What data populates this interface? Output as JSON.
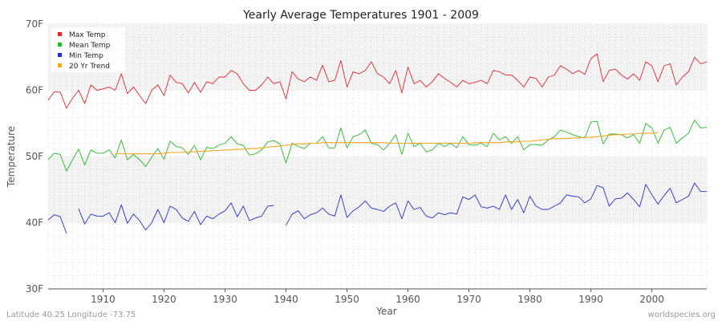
{
  "colors": {
    "max": "#e8262b",
    "mean": "#22bb22",
    "min": "#2430d0",
    "trend": "#f5a623"
  },
  "footer": {
    "left": "Latitude 40.25 Longitude -73.75",
    "right": "worldspecies.org"
  },
  "chart_data": {
    "type": "line",
    "title": "Yearly Average Temperatures 1901 - 2009",
    "xlabel": "Year",
    "ylabel": "Temperature",
    "xlim": [
      1901,
      2009
    ],
    "ylim": [
      30,
      70
    ],
    "yticks": [
      30,
      40,
      50,
      60,
      70
    ],
    "ytick_labels": [
      "30F",
      "40F",
      "50F",
      "60F",
      "70F"
    ],
    "xticks": [
      1910,
      1920,
      1930,
      1940,
      1950,
      1960,
      1970,
      1980,
      1990,
      2000
    ],
    "xtick_labels": [
      "1910",
      "1920",
      "1930",
      "1940",
      "1950",
      "1960",
      "1970",
      "1980",
      "1990",
      "2000"
    ],
    "grid": true,
    "legend_position": "top-left",
    "series": [
      {
        "name": "Max Temp",
        "x_start": 1901,
        "values": [
          58.5,
          59.8,
          59.7,
          57.3,
          58.8,
          60.0,
          58.0,
          60.8,
          60.0,
          60.2,
          60.5,
          60.0,
          62.5,
          59.5,
          60.5,
          59.2,
          58.0,
          60.0,
          60.8,
          59.2,
          62.3,
          61.2,
          61.0,
          59.6,
          61.2,
          59.7,
          61.3,
          61.0,
          62.0,
          62.0,
          63.0,
          62.5,
          61.0,
          60.0,
          60.0,
          60.8,
          62.0,
          61.0,
          61.3,
          58.7,
          62.8,
          61.7,
          61.3,
          62.0,
          61.5,
          63.8,
          61.3,
          61.5,
          64.5,
          60.5,
          62.8,
          62.5,
          63.0,
          64.3,
          62.5,
          62.0,
          61.0,
          63.0,
          59.6,
          63.5,
          61.0,
          61.5,
          60.5,
          61.3,
          62.5,
          61.8,
          61.2,
          60.5,
          61.5,
          61.0,
          61.2,
          61.5,
          61.0,
          63.0,
          62.8,
          62.3,
          62.3,
          61.5,
          60.5,
          62.0,
          61.8,
          60.5,
          62.0,
          62.3,
          63.7,
          63.2,
          62.5,
          63.0,
          62.4,
          64.8,
          65.5,
          61.3,
          63.0,
          63.2,
          62.3,
          61.7,
          62.5,
          61.5,
          64.3,
          63.7,
          61.3,
          63.7,
          64.0,
          60.8,
          62.0,
          62.8,
          65.0,
          64.0,
          64.3,
          61.8
        ]
      },
      {
        "name": "Mean Temp",
        "x_start": 1901,
        "values": [
          49.5,
          50.5,
          50.3,
          47.8,
          49.5,
          51.1,
          48.7,
          51.0,
          50.5,
          50.5,
          51.0,
          49.8,
          52.5,
          49.5,
          50.3,
          49.5,
          48.5,
          49.9,
          51.2,
          49.6,
          52.3,
          51.5,
          51.3,
          50.3,
          51.7,
          49.5,
          51.4,
          51.2,
          51.7,
          52.0,
          53.0,
          51.9,
          51.7,
          50.2,
          50.4,
          51.0,
          52.2,
          52.4,
          51.9,
          49.0,
          52.0,
          51.5,
          51.2,
          52.0,
          52.0,
          53.0,
          51.3,
          51.3,
          54.3,
          51.3,
          53.0,
          53.3,
          54.0,
          52.0,
          51.8,
          51.0,
          52.0,
          53.3,
          50.3,
          53.5,
          51.5,
          52.0,
          50.7,
          51.0,
          52.0,
          51.5,
          52.0,
          51.3,
          53.0,
          51.8,
          51.7,
          52.0,
          51.5,
          53.5,
          52.5,
          53.0,
          52.0,
          53.0,
          51.0,
          51.8,
          51.8,
          51.7,
          52.5,
          53.0,
          54.0,
          53.7,
          53.3,
          53.0,
          52.8,
          55.2,
          55.3,
          51.9,
          53.4,
          53.4,
          53.3,
          52.8,
          53.3,
          52.0,
          55.0,
          54.3,
          52.0,
          54.0,
          54.4,
          52.0,
          52.8,
          53.5,
          55.5,
          54.3,
          54.4,
          53.2
        ]
      },
      {
        "name": "Min Temp",
        "x_start": 1901,
        "values": [
          40.4,
          41.2,
          40.9,
          38.4,
          null,
          42.1,
          39.8,
          41.3,
          41.0,
          41.0,
          41.5,
          40.0,
          42.7,
          39.9,
          41.3,
          40.3,
          38.9,
          40.0,
          42.0,
          40.0,
          42.5,
          42.0,
          40.7,
          40.2,
          41.7,
          39.7,
          41.0,
          40.6,
          41.3,
          41.8,
          43.0,
          40.9,
          42.5,
          40.3,
          40.7,
          41.0,
          42.5,
          42.6,
          null,
          39.6,
          41.3,
          41.8,
          40.6,
          41.2,
          41.5,
          42.2,
          41.3,
          41.0,
          44.2,
          40.8,
          41.8,
          42.4,
          43.3,
          42.2,
          42.0,
          41.7,
          42.5,
          43.0,
          40.6,
          43.3,
          42.0,
          42.3,
          41.0,
          40.7,
          41.5,
          41.2,
          41.5,
          41.3,
          43.9,
          43.5,
          44.2,
          42.4,
          42.2,
          42.5,
          42.0,
          44.2,
          42.0,
          43.5,
          41.5,
          44.0,
          42.5,
          42.0,
          42.0,
          42.5,
          43.0,
          44.2,
          44.0,
          43.9,
          43.0,
          43.6,
          45.6,
          45.3,
          42.5,
          43.6,
          43.7,
          44.5,
          43.5,
          42.4,
          45.8,
          44.2,
          42.8,
          44.1,
          45.2,
          43.0,
          43.5,
          44.0,
          46.0,
          44.7,
          44.7,
          44.3
        ]
      },
      {
        "name": "20 Yr Trend",
        "x_start": 1912,
        "values": [
          50.4,
          50.4,
          50.4,
          50.4,
          50.4,
          50.4,
          50.4,
          50.4,
          50.5,
          50.6,
          50.6,
          50.6,
          50.7,
          50.7,
          50.8,
          50.8,
          50.9,
          50.9,
          51.0,
          51.0,
          51.1,
          51.1,
          51.2,
          51.2,
          51.3,
          51.4,
          51.5,
          51.6,
          51.7,
          51.8,
          51.9,
          51.9,
          52.0,
          52.0,
          52.1,
          52.1,
          52.1,
          52.1,
          52.1,
          52.1,
          52.1,
          52.1,
          52.1,
          52.1,
          52.1,
          52.0,
          52.0,
          52.0,
          52.0,
          52.0,
          52.0,
          52.0,
          52.0,
          52.0,
          52.0,
          52.0,
          52.0,
          52.0,
          52.0,
          52.1,
          52.1,
          52.1,
          52.1,
          52.1,
          52.2,
          52.2,
          52.2,
          52.3,
          52.3,
          52.4,
          52.5,
          52.6,
          52.7,
          52.7,
          52.7,
          52.8,
          52.8,
          52.9,
          52.9,
          53.0,
          53.1,
          53.2,
          53.3,
          53.3,
          53.4,
          53.4,
          53.5,
          53.5,
          53.5,
          53.6
        ]
      }
    ]
  }
}
